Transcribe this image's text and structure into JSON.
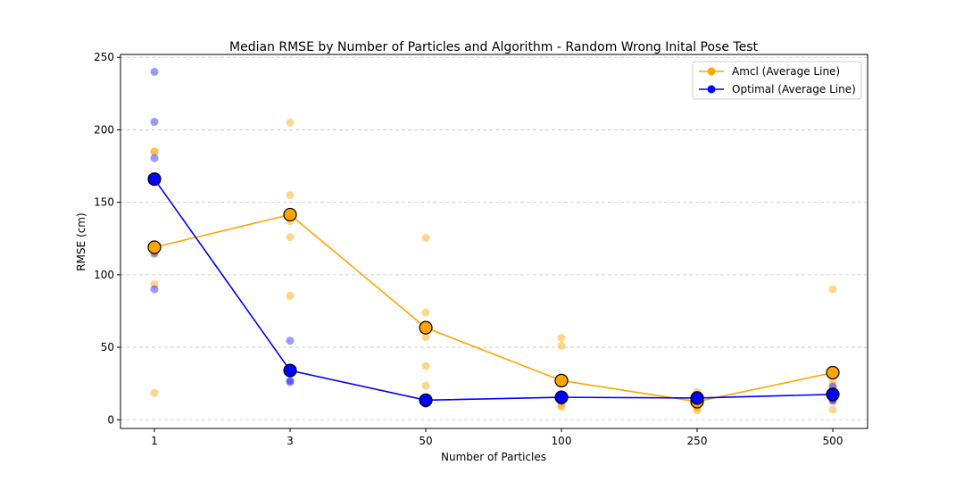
{
  "chart_data": {
    "type": "line",
    "title": "Median RMSE by Number of Particles and Algorithm - Random Wrong Inital Pose Test",
    "xlabel": "Number of Particles",
    "ylabel": "RMSE (cm)",
    "categories": [
      "1",
      "3",
      "50",
      "100",
      "250",
      "500"
    ],
    "ylim": [
      -6,
      252
    ],
    "yticks": [
      0,
      50,
      100,
      150,
      200,
      250
    ],
    "grid": "horizontal-dashed",
    "legend_position": "top-right",
    "series": [
      {
        "name": "Amcl (Average Line)",
        "color": "#ffa500",
        "values": [
          119,
          141.5,
          63.5,
          27,
          12.5,
          32.5
        ],
        "points": [
          [
            185,
            185,
            119,
            114,
            93.5,
            18.5
          ],
          [
            205,
            155,
            141.5,
            137,
            126,
            85.5
          ],
          [
            125.5,
            74,
            63.5,
            57,
            37,
            23.5
          ],
          [
            56.5,
            51,
            27,
            13,
            10,
            9
          ],
          [
            19,
            12.5,
            11,
            9,
            8,
            6.5
          ],
          [
            90,
            32.5,
            26,
            22,
            16,
            7
          ]
        ]
      },
      {
        "name": "Optimal (Average Line)",
        "color": "#0000ff",
        "values": [
          166,
          34,
          13.5,
          15.5,
          15,
          17.5
        ],
        "points": [
          [
            240,
            205.5,
            180.5,
            166,
            115,
            90
          ],
          [
            54.5,
            34,
            27,
            26,
            33,
            35
          ],
          [
            14,
            13.5,
            12,
            11,
            13,
            15
          ],
          [
            17,
            15.5,
            14,
            16,
            13,
            15
          ],
          [
            16,
            15,
            14,
            15,
            13,
            17
          ],
          [
            23,
            17.5,
            15,
            14,
            19,
            13
          ]
        ]
      }
    ]
  }
}
